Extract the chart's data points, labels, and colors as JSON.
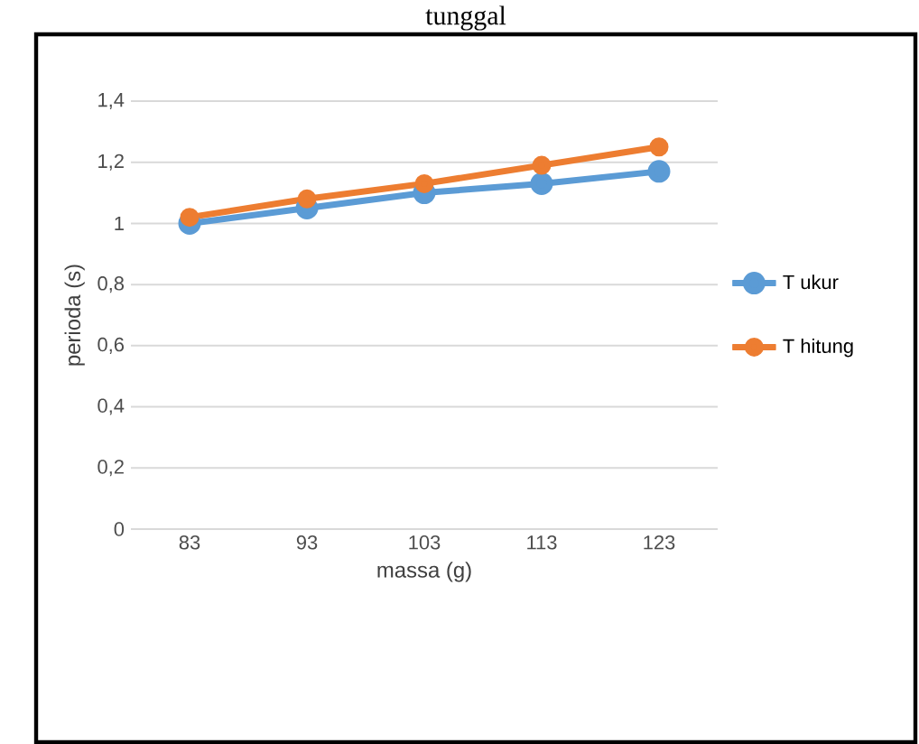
{
  "chart_data": {
    "type": "line",
    "title": "tunggal",
    "xlabel": "massa (g)",
    "ylabel": "perioda (s)",
    "categories": [
      "83",
      "93",
      "103",
      "113",
      "123"
    ],
    "series": [
      {
        "name": "T ukur",
        "color": "#5b9bd5",
        "values": [
          1.0,
          1.05,
          1.1,
          1.13,
          1.17
        ]
      },
      {
        "name": "T hitung",
        "color": "#ed7d31",
        "values": [
          1.02,
          1.08,
          1.13,
          1.19,
          1.25
        ]
      }
    ],
    "ylim": [
      0,
      1.4
    ],
    "yticks": [
      {
        "value": 0,
        "label": "0"
      },
      {
        "value": 0.2,
        "label": "0,2"
      },
      {
        "value": 0.4,
        "label": "0,4"
      },
      {
        "value": 0.6,
        "label": "0,6"
      },
      {
        "value": 0.8,
        "label": "0,8"
      },
      {
        "value": 1,
        "label": "1"
      },
      {
        "value": 1.2,
        "label": "1,2"
      },
      {
        "value": 1.4,
        "label": "1,4"
      }
    ],
    "grid": "y",
    "legend": "right",
    "marker": "circle",
    "line_style": "solid"
  }
}
